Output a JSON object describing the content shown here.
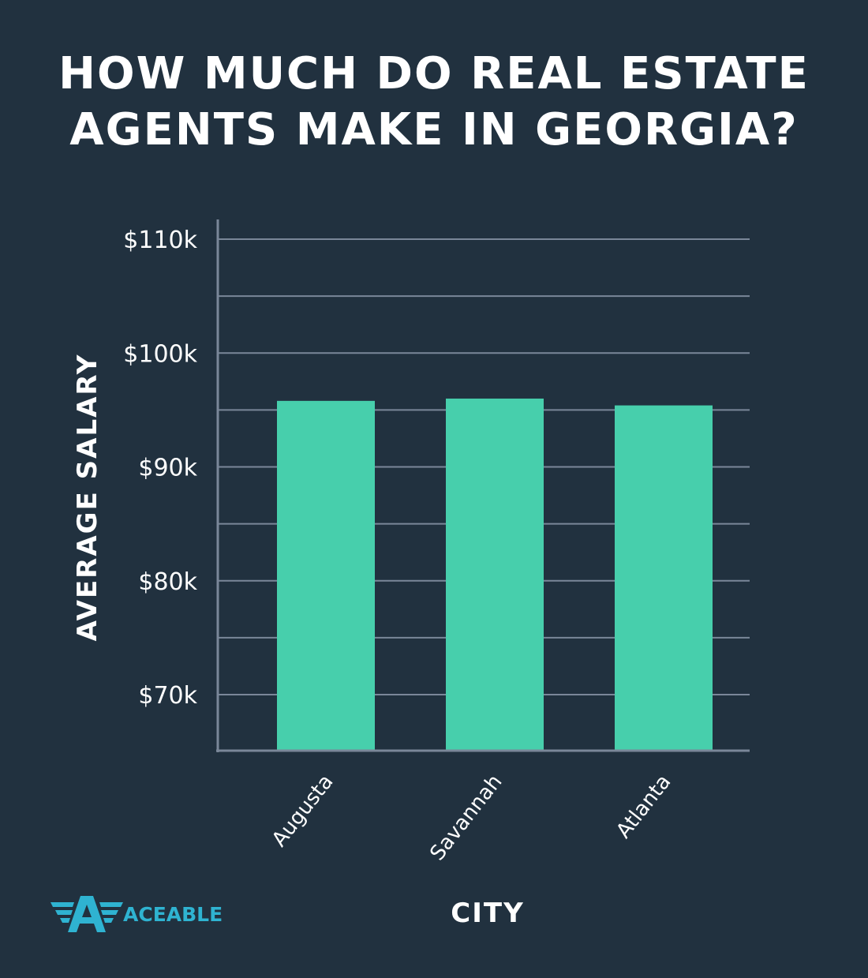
{
  "page": {
    "title_lines": [
      "HOW MUCH DO REAL ESTATE",
      "AGENTS MAKE IN GEORGIA?"
    ],
    "background_color": "#21313f"
  },
  "logo": {
    "text": "ACEABLE",
    "color": "#2fb3d1",
    "icon": "aceable-winged-a-icon"
  },
  "chart_data": {
    "type": "bar",
    "title": "HOW MUCH DO REAL ESTATE AGENTS MAKE IN GEORGIA?",
    "xlabel": "CITY",
    "ylabel": "AVERAGE SALARY",
    "categories": [
      "Augusta",
      "Savannah",
      "Atlanta"
    ],
    "values": [
      95800,
      96000,
      95400
    ],
    "ylim": [
      65000,
      112000
    ],
    "yticks": [
      {
        "value": 110000,
        "label": "$110k"
      },
      {
        "value": 100000,
        "label": "$100k"
      },
      {
        "value": 90000,
        "label": "$90k"
      },
      {
        "value": 80000,
        "label": "$80k"
      },
      {
        "value": 70000,
        "label": "$70k"
      }
    ],
    "minor_gridlines": [
      105000,
      95000,
      85000,
      75000
    ],
    "grid": true,
    "legend": "none",
    "bar_color": "#47cfac",
    "grid_color": "#7a8799",
    "axis_color": "#7a8799",
    "text_color": "#ffffff"
  }
}
